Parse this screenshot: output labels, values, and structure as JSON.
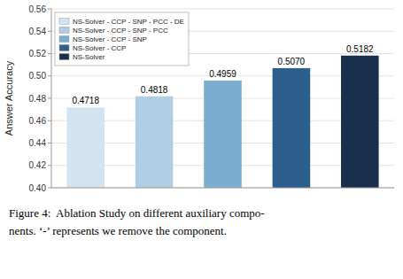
{
  "chart_data": {
    "type": "bar",
    "categories": [
      "NS-Solver - CCP - SNP - PCC - DE",
      "NS-Solver - CCP - SNP - PCC",
      "NS-Solver - CCP - SNP",
      "NS-Solver - CCP",
      "NS-Solver"
    ],
    "values": [
      0.4718,
      0.4818,
      0.4959,
      0.507,
      0.5182
    ],
    "value_labels": [
      "0.4718",
      "0.4818",
      "0.4959",
      "0.5070",
      "0.5182"
    ],
    "colors": [
      "#d4e3f0",
      "#b0cde3",
      "#7aaed1",
      "#2d5f8e",
      "#1a2f4d"
    ],
    "y_label": "Answer Accuracy",
    "ylim": [
      0.4,
      0.56
    ],
    "yticks": [
      {
        "value": 0.4,
        "label": "0.40"
      },
      0.42,
      0.44,
      0.46,
      0.48,
      {
        "value": 0.5,
        "label": "0.50"
      },
      0.52,
      0.54,
      0.56
    ],
    "grid": true,
    "legend": "upper-left",
    "data_labels": true,
    "tick_labels": "y",
    "annotations": [
      "Figure 4:  Ablation Study on different auxiliary compo-",
      "nents. ‘-’ represents we remove the component."
    ]
  }
}
